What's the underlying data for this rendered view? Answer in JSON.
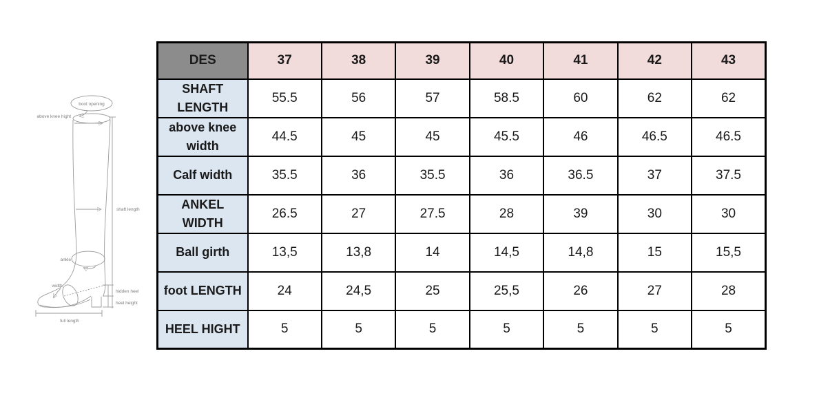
{
  "diagram": {
    "labels": {
      "boot_opening": "boot opening",
      "above_knee_hight": "above knee hight",
      "shaft_length": "shaft length",
      "ankle": "ankle",
      "width": "width",
      "hidden_heel": "hidden heel",
      "heel_height": "heel height",
      "full_length": "full length"
    }
  },
  "table": {
    "corner_label": "DES",
    "sizes": [
      "37",
      "38",
      "39",
      "40",
      "41",
      "42",
      "43"
    ],
    "rows": [
      {
        "label": "SHAFT LENGTH",
        "values": [
          "55.5",
          "56",
          "57",
          "58.5",
          "60",
          "62",
          "62"
        ]
      },
      {
        "label": "above knee width",
        "values": [
          "44.5",
          "45",
          "45",
          "45.5",
          "46",
          "46.5",
          "46.5"
        ]
      },
      {
        "label": "Calf width",
        "values": [
          "35.5",
          "36",
          "35.5",
          "36",
          "36.5",
          "37",
          "37.5"
        ]
      },
      {
        "label": "ANKEL WIDTH",
        "values": [
          "26.5",
          "27",
          "27.5",
          "28",
          "39",
          "30",
          "30"
        ]
      },
      {
        "label": "Ball girth",
        "values": [
          "13,5",
          "13,8",
          "14",
          "14,5",
          "14,8",
          "15",
          "15,5"
        ]
      },
      {
        "label": "foot LENGTH",
        "values": [
          "24",
          "24,5",
          "25",
          "25,5",
          "26",
          "27",
          "28"
        ]
      },
      {
        "label": "HEEL HIGHT",
        "values": [
          "5",
          "5",
          "5",
          "5",
          "5",
          "5",
          "5"
        ]
      }
    ]
  },
  "colors": {
    "des_header_bg": "#8c8c8c",
    "size_header_bg": "#f2dcdb",
    "row_label_bg": "#dce6f1",
    "border": "#000000",
    "diagram_stroke": "#9a9a9a"
  }
}
